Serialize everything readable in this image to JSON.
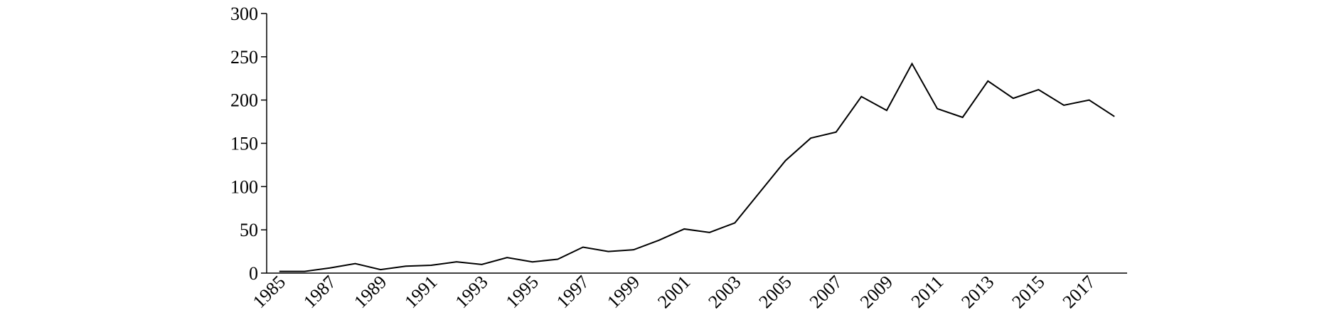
{
  "chart_data": {
    "type": "line",
    "x": [
      1985,
      1986,
      1987,
      1988,
      1989,
      1990,
      1991,
      1992,
      1993,
      1994,
      1995,
      1996,
      1997,
      1998,
      1999,
      2000,
      2001,
      2002,
      2003,
      2004,
      2005,
      2006,
      2007,
      2008,
      2009,
      2010,
      2011,
      2012,
      2013,
      2014,
      2015,
      2016,
      2017,
      2018
    ],
    "values": [
      2,
      2,
      6,
      11,
      4,
      8,
      9,
      13,
      10,
      18,
      13,
      16,
      30,
      25,
      27,
      38,
      51,
      47,
      58,
      94,
      130,
      156,
      163,
      204,
      188,
      242,
      190,
      180,
      222,
      202,
      212,
      194,
      200,
      181
    ],
    "color": "#000000",
    "xlim": [
      1984.5,
      2018.5
    ],
    "xticks": [
      1985,
      1987,
      1989,
      1991,
      1993,
      1995,
      1997,
      1999,
      2001,
      2003,
      2005,
      2007,
      2009,
      2011,
      2013,
      2015,
      2017
    ],
    "ylim": [
      0,
      300
    ],
    "yticks": [
      0,
      50,
      100,
      150,
      200,
      250,
      300
    ],
    "grid": false
  }
}
